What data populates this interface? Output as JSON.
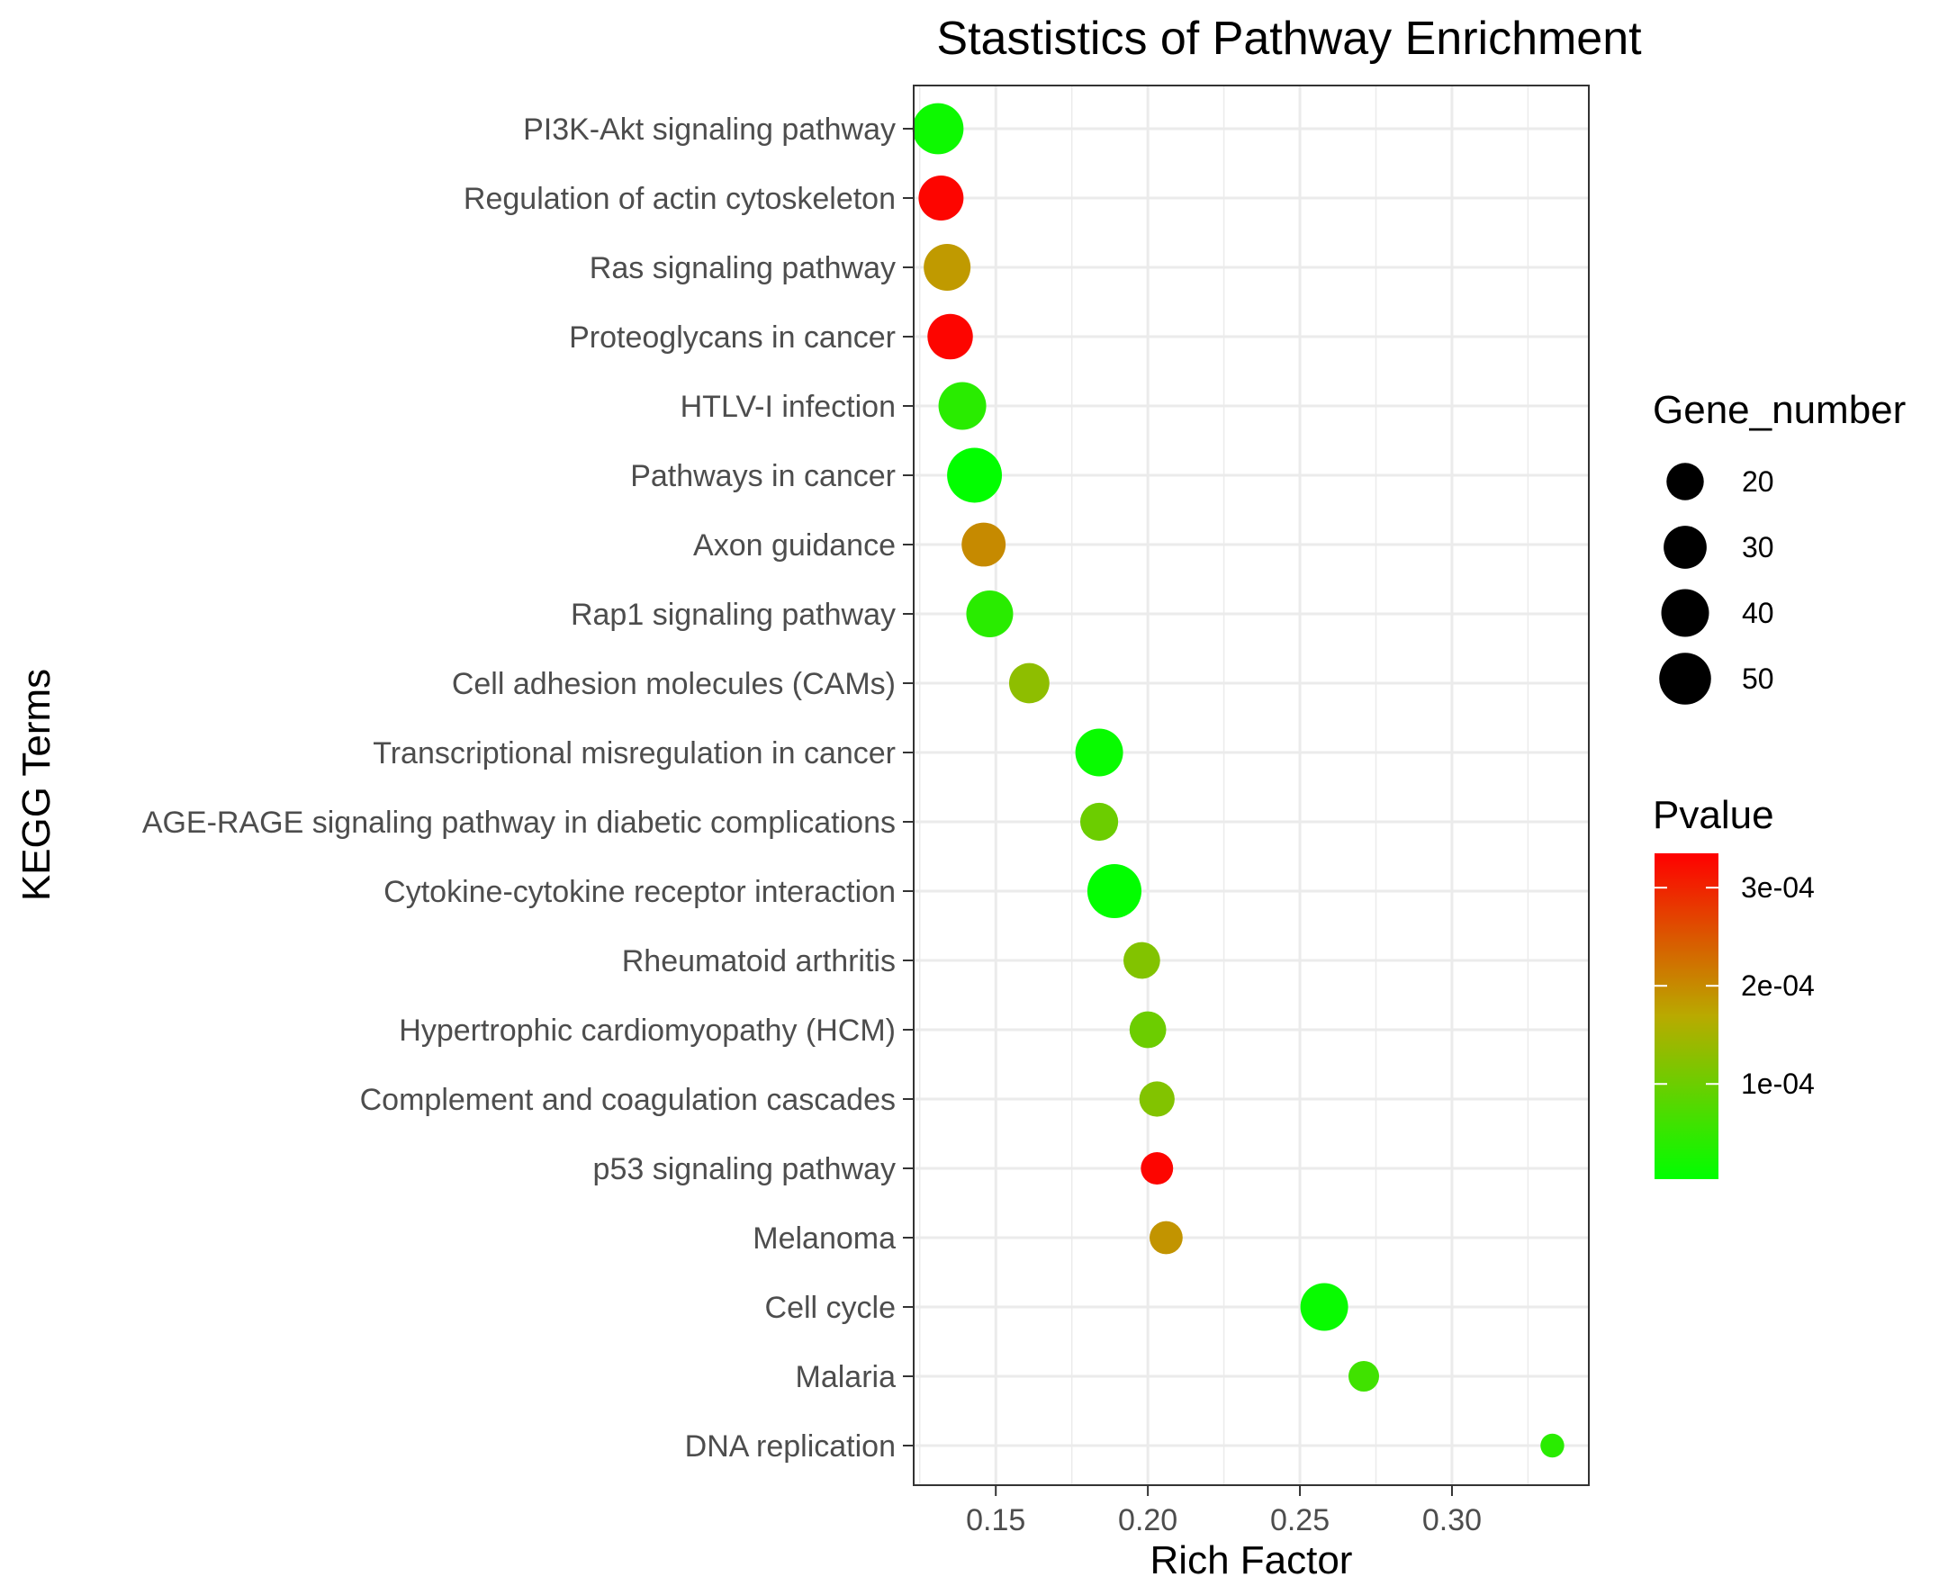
{
  "chart_data": {
    "type": "scatter",
    "title": "Stastistics of Pathway Enrichment",
    "xlabel": "Rich Factor",
    "ylabel": "KEGG Terms",
    "xlim": [
      0.123,
      0.345
    ],
    "x_ticks": [
      0.15,
      0.2,
      0.25,
      0.3
    ],
    "x_tick_labels": [
      "0.15",
      "0.20",
      "0.25",
      "0.30"
    ],
    "grid": true,
    "legend_position": "right",
    "categories": [
      "PI3K-Akt signaling pathway",
      "Regulation of actin cytoskeleton",
      "Ras signaling pathway",
      "Proteoglycans in cancer",
      "HTLV-I infection",
      "Pathways in cancer",
      "Axon guidance",
      "Rap1 signaling pathway",
      "Cell adhesion molecules (CAMs)",
      "Transcriptional misregulation in cancer",
      "AGE-RAGE signaling pathway in diabetic complications",
      "Cytokine-cytokine receptor interaction",
      "Rheumatoid arthritis",
      "Hypertrophic cardiomyopathy (HCM)",
      "Complement and coagulation cascades",
      "p53 signaling pathway",
      "Melanoma",
      "Cell cycle",
      "Malaria",
      "DNA replication"
    ],
    "points": [
      {
        "term": "PI3K-Akt signaling pathway",
        "rich_factor": 0.131,
        "gene_number": 48,
        "pvalue": 1.5e-05
      },
      {
        "term": "Regulation of actin cytoskeleton",
        "rich_factor": 0.132,
        "gene_number": 34,
        "pvalue": 0.00033
      },
      {
        "term": "Ras signaling pathway",
        "rich_factor": 0.134,
        "gene_number": 38,
        "pvalue": 0.000185
      },
      {
        "term": "Proteoglycans in cancer",
        "rich_factor": 0.135,
        "gene_number": 35,
        "pvalue": 0.00033
      },
      {
        "term": "HTLV-I infection",
        "rich_factor": 0.139,
        "gene_number": 40,
        "pvalue": 4e-05
      },
      {
        "term": "Pathways in cancer",
        "rich_factor": 0.143,
        "gene_number": 58,
        "pvalue": 5e-06
      },
      {
        "term": "Axon guidance",
        "rich_factor": 0.146,
        "gene_number": 32,
        "pvalue": 0.0002
      },
      {
        "term": "Rap1 signaling pathway",
        "rich_factor": 0.148,
        "gene_number": 38,
        "pvalue": 4e-05
      },
      {
        "term": "Cell adhesion molecules (CAMs)",
        "rich_factor": 0.161,
        "gene_number": 25,
        "pvalue": 0.00013
      },
      {
        "term": "Transcriptional misregulation in cancer",
        "rich_factor": 0.184,
        "gene_number": 40,
        "pvalue": 1e-05
      },
      {
        "term": "AGE-RAGE signaling pathway in diabetic complications",
        "rich_factor": 0.184,
        "gene_number": 21,
        "pvalue": 0.0001
      },
      {
        "term": "Cytokine-cytokine receptor interaction",
        "rich_factor": 0.189,
        "gene_number": 56,
        "pvalue": 5e-06
      },
      {
        "term": "Rheumatoid arthritis",
        "rich_factor": 0.198,
        "gene_number": 19,
        "pvalue": 0.00012
      },
      {
        "term": "Hypertrophic cardiomyopathy (HCM)",
        "rich_factor": 0.2,
        "gene_number": 19,
        "pvalue": 0.0001
      },
      {
        "term": "Complement and coagulation cascades",
        "rich_factor": 0.203,
        "gene_number": 17,
        "pvalue": 0.00012
      },
      {
        "term": "p53 signaling pathway",
        "rich_factor": 0.203,
        "gene_number": 13,
        "pvalue": 0.00033
      },
      {
        "term": "Melanoma",
        "rich_factor": 0.206,
        "gene_number": 14,
        "pvalue": 0.00019
      },
      {
        "term": "Cell cycle",
        "rich_factor": 0.258,
        "gene_number": 40,
        "pvalue": 1e-05
      },
      {
        "term": "Malaria",
        "rich_factor": 0.271,
        "gene_number": 11,
        "pvalue": 6e-05
      },
      {
        "term": "DNA replication",
        "rich_factor": 0.333,
        "gene_number": 5,
        "pvalue": 4e-05
      }
    ],
    "size_legend": {
      "title": "Gene_number",
      "values": [
        20,
        30,
        40,
        50
      ],
      "labels": [
        "20",
        "30",
        "40",
        "50"
      ]
    },
    "color_legend": {
      "title": "Pvalue",
      "low_color": "#00ff00",
      "high_color": "#ff0000",
      "range": [
        3e-06,
        0.000335
      ],
      "ticks": [
        0.0001,
        0.0002,
        0.0003
      ],
      "tick_labels": [
        "1e-04",
        "2e-04",
        "3e-04"
      ]
    },
    "colors": {
      "grid": "#ebebeb",
      "panel_border": "#333333",
      "tick_text": "#4d4d4d"
    }
  }
}
